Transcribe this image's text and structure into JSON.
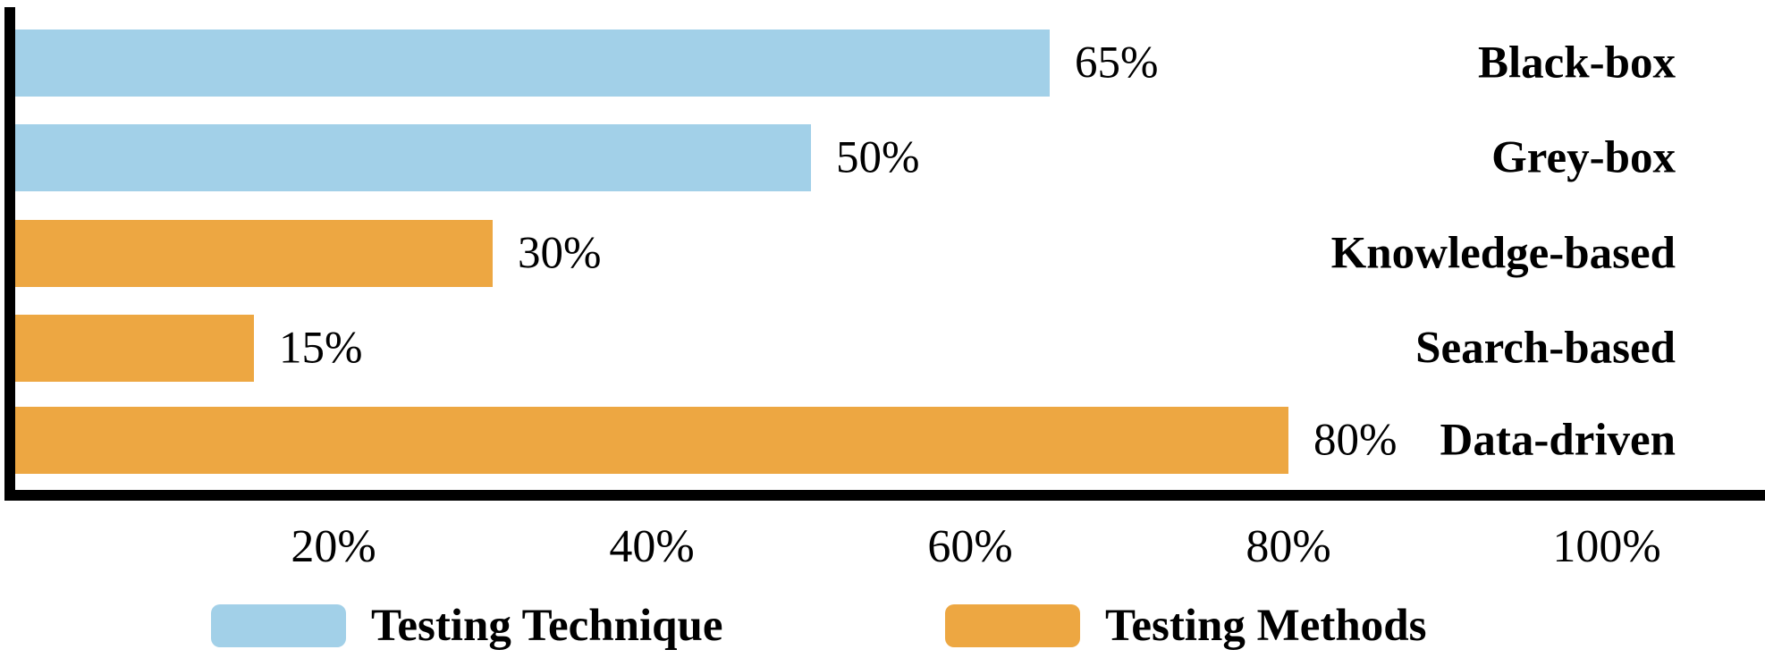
{
  "chart_data": {
    "type": "bar",
    "orientation": "horizontal",
    "title": "",
    "xlabel": "",
    "ylabel": "",
    "grid": false,
    "legend_position": "bottom",
    "xlim": [
      0,
      110
    ],
    "categories": [
      "Black-box",
      "Grey-box",
      "Knowledge-based",
      "Search-based",
      "Data-driven"
    ],
    "bars": [
      {
        "category": "Black-box",
        "value": 65,
        "value_label": "65%",
        "series": "Testing Technique",
        "color": "#A2D0E8"
      },
      {
        "category": "Grey-box",
        "value": 50,
        "value_label": "50%",
        "series": "Testing Technique",
        "color": "#A2D0E8"
      },
      {
        "category": "Knowledge-based",
        "value": 30,
        "value_label": "30%",
        "series": "Testing Methods",
        "color": "#EDA742"
      },
      {
        "category": "Search-based",
        "value": 15,
        "value_label": "15%",
        "series": "Testing Methods",
        "color": "#EDA742"
      },
      {
        "category": "Data-driven",
        "value": 80,
        "value_label": "80%",
        "series": "Testing Methods",
        "color": "#EDA742"
      }
    ],
    "x_ticks": [
      {
        "value": 20,
        "label": "20%"
      },
      {
        "value": 40,
        "label": "40%"
      },
      {
        "value": 60,
        "label": "60%"
      },
      {
        "value": 80,
        "label": "80%"
      },
      {
        "value": 100,
        "label": "100%"
      }
    ],
    "legend": [
      {
        "label": "Testing Technique",
        "color": "#A2D0E8"
      },
      {
        "label": "Testing Methods",
        "color": "#EDA742"
      }
    ]
  },
  "colors": {
    "background": "#FFFFFF",
    "axis": "#000000",
    "text": "#000000",
    "series_technique": "#A2D0E8",
    "series_methods": "#EDA742"
  }
}
